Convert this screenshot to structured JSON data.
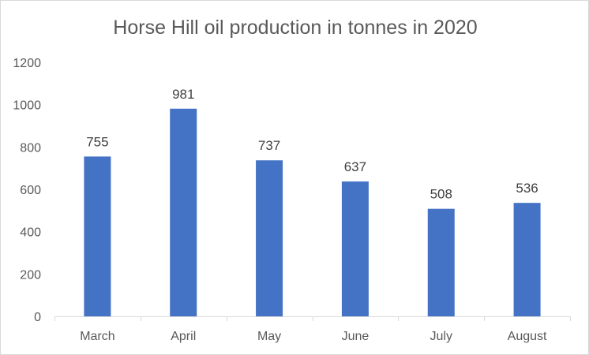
{
  "chart_data": {
    "type": "bar",
    "title": "Horse Hill oil production in tonnes in 2020",
    "xlabel": "",
    "ylabel": "",
    "categories": [
      "March",
      "April",
      "May",
      "June",
      "July",
      "August"
    ],
    "values": [
      755,
      981,
      737,
      637,
      508,
      536
    ],
    "data_labels": [
      "755",
      "981",
      "737",
      "637",
      "508",
      "536"
    ],
    "y_ticks": [
      0,
      200,
      400,
      600,
      800,
      1000,
      1200
    ],
    "ylim": [
      0,
      1200
    ],
    "grid": false,
    "legend": "none",
    "bar_color": "#4472c4"
  }
}
